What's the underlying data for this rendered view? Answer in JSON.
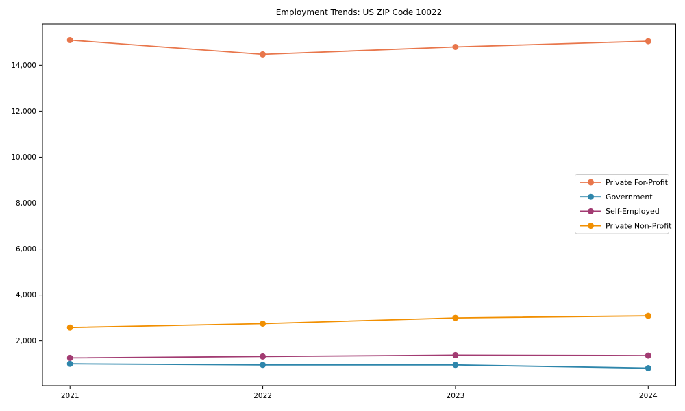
{
  "window": {
    "background": "#ffffff",
    "axis_color": "#000000",
    "legend_border_color": "#cccccc",
    "legend_background": "#ffffff"
  },
  "chart_data": {
    "type": "line",
    "title": "Employment Trends: US ZIP Code 10022",
    "xlabel": "",
    "ylabel": "",
    "x": [
      "2021",
      "2022",
      "2023",
      "2024"
    ],
    "y_ticks": [
      {
        "value": 2000,
        "label": "2,000"
      },
      {
        "value": 4000,
        "label": "4,000"
      },
      {
        "value": 6000,
        "label": "6,000"
      },
      {
        "value": 8000,
        "label": "8,000"
      },
      {
        "value": 10000,
        "label": "10,000"
      },
      {
        "value": 12000,
        "label": "12,000"
      },
      {
        "value": 14000,
        "label": "14,000"
      }
    ],
    "ylim": [
      50,
      15800
    ],
    "grid": false,
    "legend_position": "center right",
    "series": [
      {
        "name": "Private For-Profit",
        "color": "#E8764B",
        "marker": "circle",
        "values": [
          15100,
          14475,
          14800,
          15050
        ]
      },
      {
        "name": "Government",
        "color": "#2E86AB",
        "marker": "circle",
        "values": [
          1000,
          950,
          950,
          810
        ]
      },
      {
        "name": "Self-Employed",
        "color": "#A23B72",
        "marker": "circle",
        "values": [
          1260,
          1320,
          1380,
          1360
        ]
      },
      {
        "name": "Private Non-Profit",
        "color": "#F18F01",
        "marker": "circle",
        "values": [
          2580,
          2750,
          3000,
          3090
        ]
      }
    ]
  }
}
